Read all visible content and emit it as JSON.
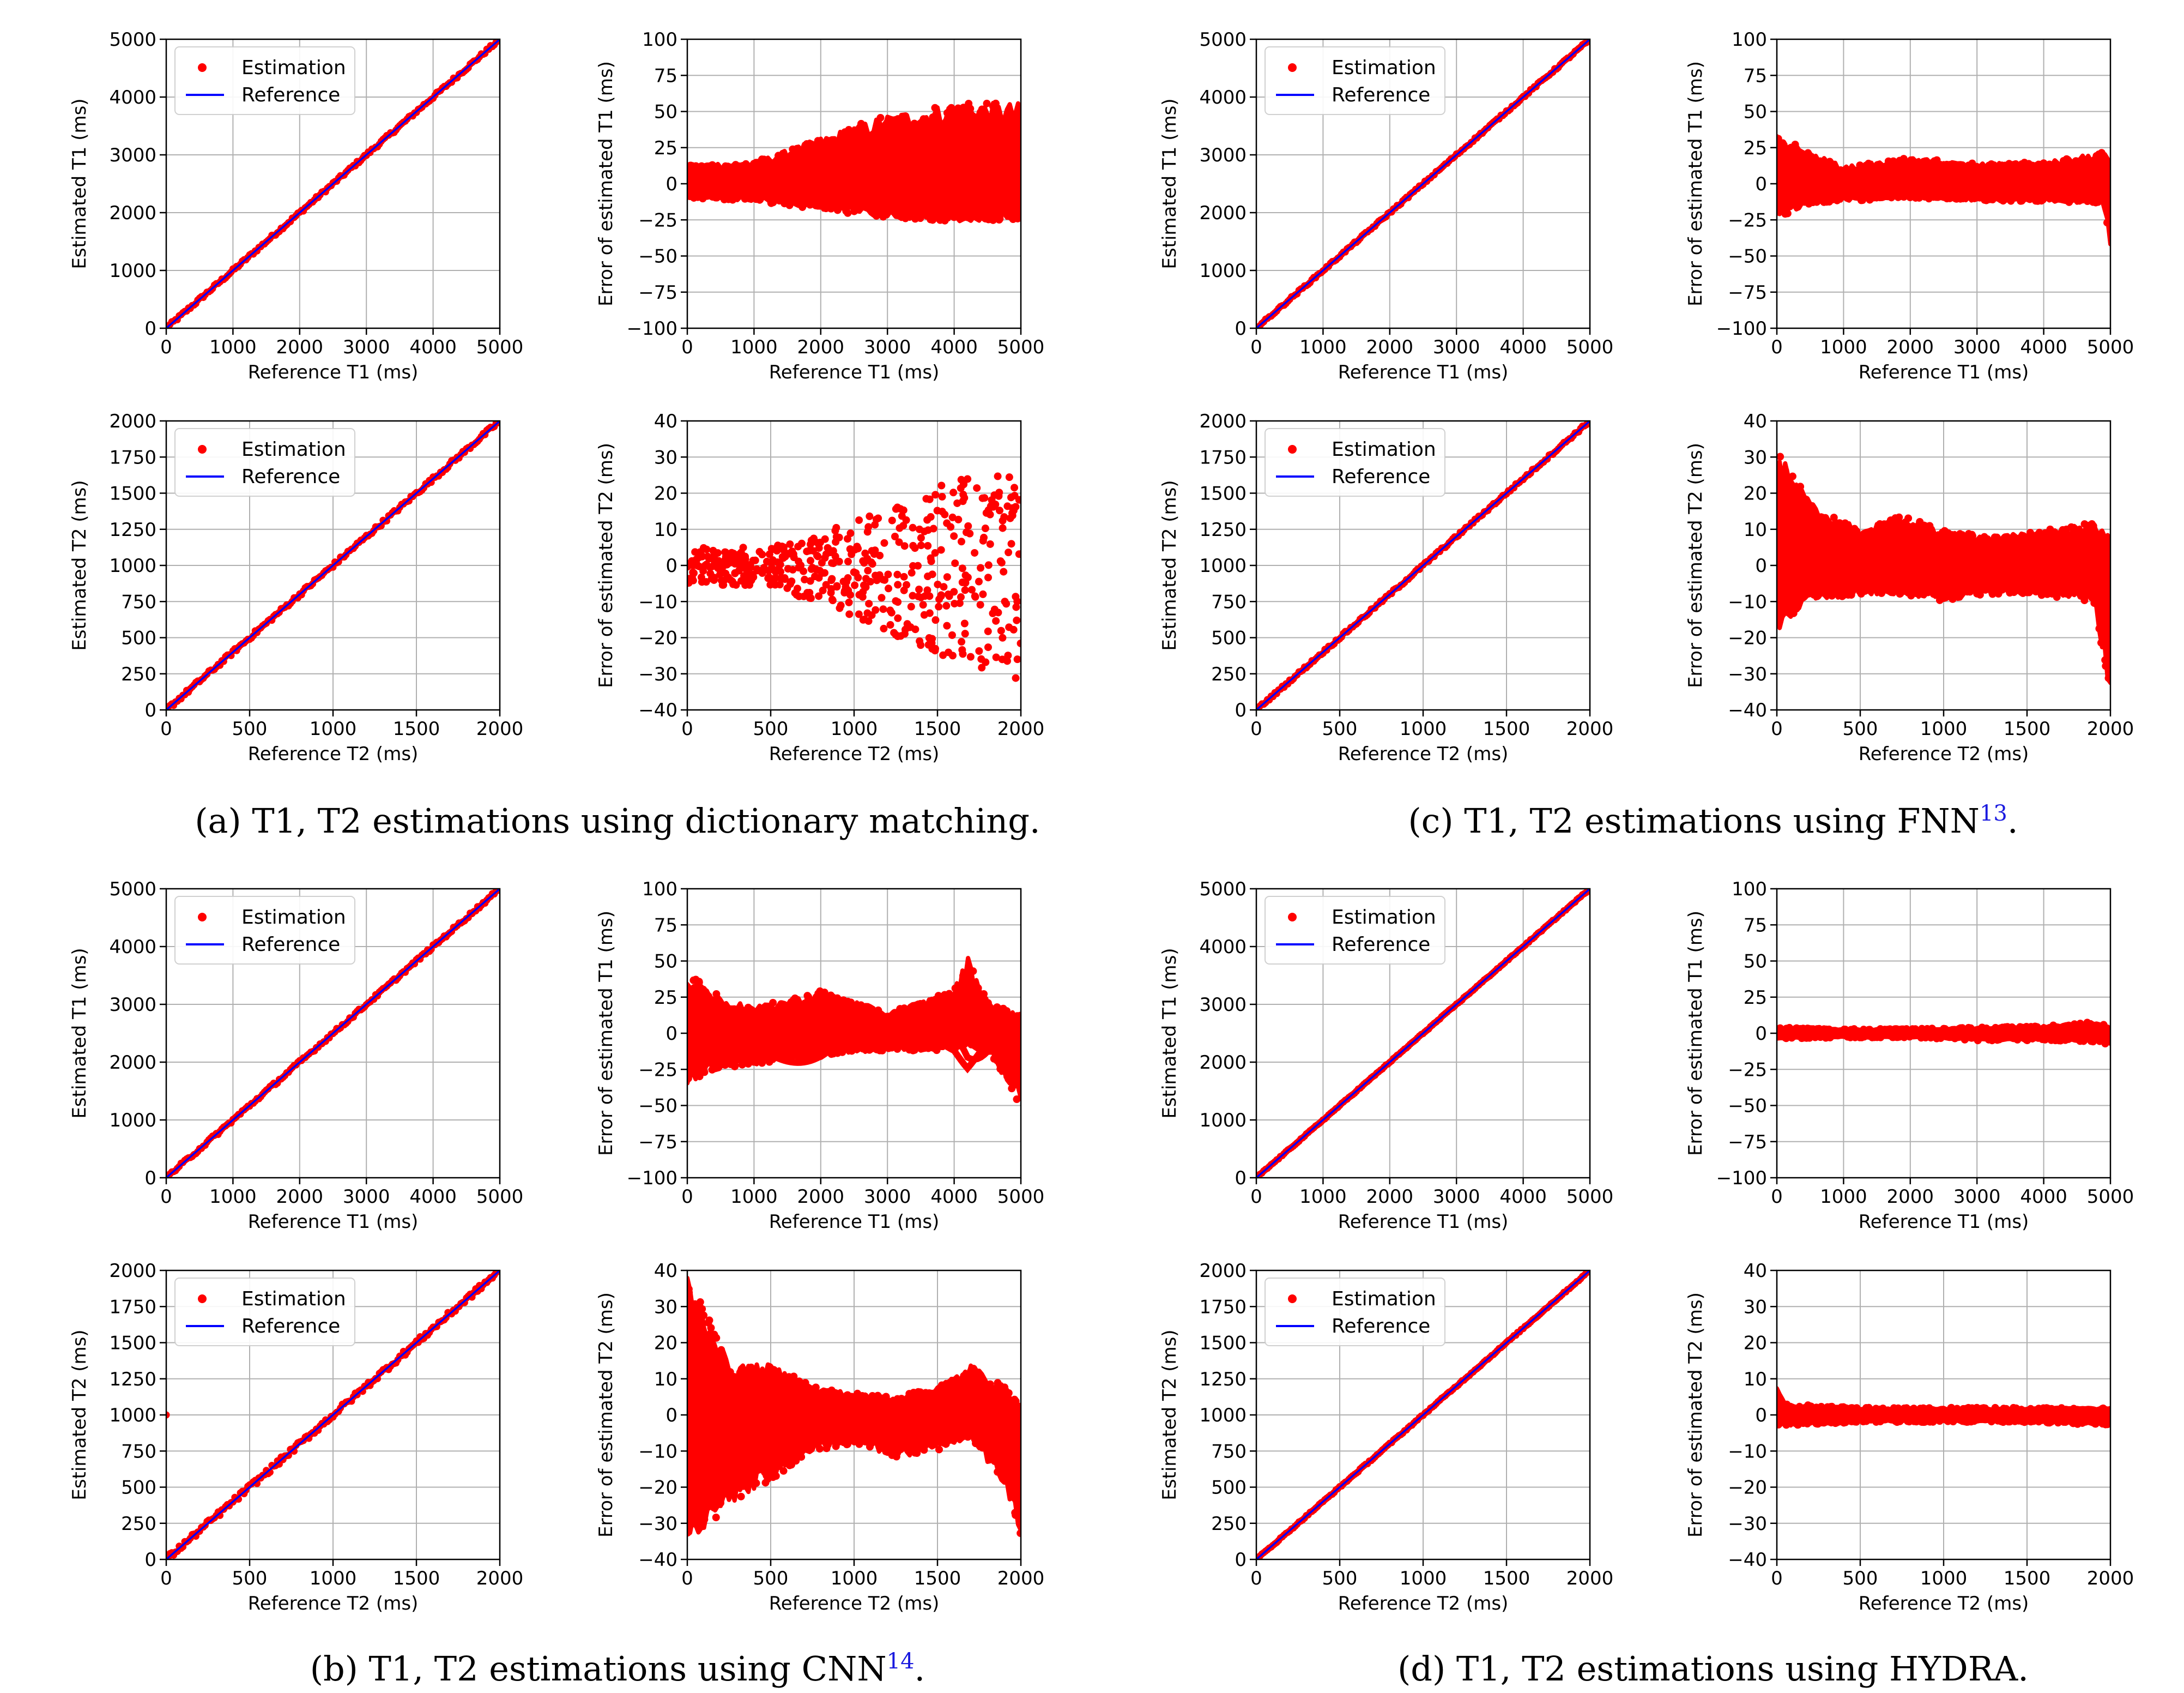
{
  "figure": {
    "captions": [
      {
        "id": "a",
        "text": "(a) T1, T2 estimations using dictionary matching.",
        "ref": "",
        "tail": ""
      },
      {
        "id": "b",
        "text": "(b) T1, T2 estimations using CNN",
        "ref": "14",
        "tail": "."
      },
      {
        "id": "c",
        "text": "(c) T1, T2 estimations using FNN",
        "ref": "13",
        "tail": "."
      },
      {
        "id": "d",
        "text": "(d) T1, T2 estimations using HYDRA.",
        "ref": "",
        "tail": ""
      }
    ]
  },
  "colors": {
    "estimation": "#ff0000",
    "reference": "#0000ff",
    "grid": "#b0b0b0",
    "axes": "#000000",
    "caption_ref": "#1a1adf"
  },
  "chart_data": [
    {
      "panel": "a",
      "kind": "scatter_ref",
      "param": "T1",
      "type": "scatter",
      "xlabel": "Reference T1 (ms)",
      "ylabel": "Estimated T1 (ms)",
      "xlim": [
        0,
        5000
      ],
      "ylim": [
        0,
        5000
      ],
      "xticks": [
        0,
        1000,
        2000,
        3000,
        4000,
        5000
      ],
      "yticks": [
        0,
        1000,
        2000,
        3000,
        4000,
        5000
      ],
      "legend": [
        "Estimation",
        "Reference"
      ],
      "legend_loc": "upper-left",
      "grid": true,
      "reference_line": [
        [
          0,
          0
        ],
        [
          5000,
          5000
        ]
      ],
      "marker_spread": 30
    },
    {
      "panel": "a",
      "kind": "error",
      "param": "T1",
      "type": "scatter",
      "xlabel": "Reference T1 (ms)",
      "ylabel": "Error of estimated T1 (ms)",
      "xlim": [
        0,
        5000
      ],
      "ylim": [
        -100,
        100
      ],
      "xticks": [
        0,
        1000,
        2000,
        3000,
        4000,
        5000
      ],
      "yticks": [
        -100,
        -75,
        -50,
        -25,
        0,
        25,
        50,
        75,
        100
      ],
      "grid": true,
      "style": "fan_grow",
      "error_envelope": {
        "x": [
          0,
          1000,
          2000,
          3000,
          4000,
          5000
        ],
        "upper": [
          14,
          15,
          32,
          48,
          56,
          56
        ],
        "lower": [
          -10,
          -12,
          -18,
          -24,
          -26,
          -25
        ]
      }
    },
    {
      "panel": "a",
      "kind": "scatter_ref",
      "param": "T2",
      "type": "scatter",
      "xlabel": "Reference T2 (ms)",
      "ylabel": "Estimated T2 (ms)",
      "xlim": [
        0,
        2000
      ],
      "ylim": [
        0,
        2000
      ],
      "xticks": [
        0,
        500,
        1000,
        1500,
        2000
      ],
      "yticks": [
        0,
        250,
        500,
        750,
        1000,
        1250,
        1500,
        1750,
        2000
      ],
      "legend": [
        "Estimation",
        "Reference"
      ],
      "legend_loc": "upper-left",
      "grid": true,
      "reference_line": [
        [
          0,
          0
        ],
        [
          2000,
          2000
        ]
      ],
      "marker_spread": 15
    },
    {
      "panel": "a",
      "kind": "error",
      "param": "T2",
      "type": "scatter",
      "xlabel": "Reference T2 (ms)",
      "ylabel": "Error of estimated T2 (ms)",
      "xlim": [
        0,
        2000
      ],
      "ylim": [
        -40,
        40
      ],
      "xticks": [
        0,
        500,
        1000,
        1500,
        2000
      ],
      "yticks": [
        -40,
        -30,
        -20,
        -10,
        0,
        10,
        20,
        30,
        40
      ],
      "grid": true,
      "style": "sparse_fan",
      "error_envelope": {
        "x": [
          0,
          500,
          1000,
          1500,
          2000
        ],
        "upper": [
          5,
          5,
          12,
          22,
          30
        ],
        "lower": [
          -5,
          -6,
          -14,
          -25,
          -32
        ]
      }
    },
    {
      "panel": "c",
      "kind": "scatter_ref",
      "param": "T1",
      "type": "scatter",
      "xlabel": "Reference T1 (ms)",
      "ylabel": "Estimated T1 (ms)",
      "xlim": [
        0,
        5000
      ],
      "ylim": [
        0,
        5000
      ],
      "xticks": [
        0,
        1000,
        2000,
        3000,
        4000,
        5000
      ],
      "yticks": [
        0,
        1000,
        2000,
        3000,
        4000,
        5000
      ],
      "legend": [
        "Estimation",
        "Reference"
      ],
      "legend_loc": "upper-left",
      "grid": true,
      "reference_line": [
        [
          0,
          0
        ],
        [
          5000,
          5000
        ]
      ],
      "marker_spread": 20
    },
    {
      "panel": "c",
      "kind": "error",
      "param": "T1",
      "type": "scatter",
      "xlabel": "Reference T1 (ms)",
      "ylabel": "Error of estimated T1 (ms)",
      "xlim": [
        0,
        5000
      ],
      "ylim": [
        -100,
        100
      ],
      "xticks": [
        0,
        1000,
        2000,
        3000,
        4000,
        5000
      ],
      "yticks": [
        -100,
        -75,
        -50,
        -25,
        0,
        25,
        50,
        75,
        100
      ],
      "grid": true,
      "style": "band",
      "error_envelope": {
        "x": [
          0,
          500,
          1000,
          2000,
          3000,
          4000,
          4900,
          5000
        ],
        "upper": [
          34,
          22,
          12,
          18,
          14,
          15,
          22,
          14
        ],
        "lower": [
          -24,
          -14,
          -12,
          -10,
          -12,
          -12,
          -14,
          -42
        ]
      }
    },
    {
      "panel": "c",
      "kind": "scatter_ref",
      "param": "T2",
      "type": "scatter",
      "xlabel": "Reference T2 (ms)",
      "ylabel": "Estimated T2 (ms)",
      "xlim": [
        0,
        2000
      ],
      "ylim": [
        0,
        2000
      ],
      "xticks": [
        0,
        500,
        1000,
        1500,
        2000
      ],
      "yticks": [
        0,
        250,
        500,
        750,
        1000,
        1250,
        1500,
        1750,
        2000
      ],
      "legend": [
        "Estimation",
        "Reference"
      ],
      "legend_loc": "upper-left",
      "grid": true,
      "reference_line": [
        [
          0,
          0
        ],
        [
          2000,
          2000
        ]
      ],
      "marker_spread": 10
    },
    {
      "panel": "c",
      "kind": "error",
      "param": "T2",
      "type": "scatter",
      "xlabel": "Reference T2 (ms)",
      "ylabel": "Error of estimated T2 (ms)",
      "xlim": [
        0,
        2000
      ],
      "ylim": [
        -40,
        40
      ],
      "xticks": [
        0,
        500,
        1000,
        1500,
        2000
      ],
      "yticks": [
        -40,
        -30,
        -20,
        -10,
        0,
        10,
        20,
        30,
        40
      ],
      "grid": true,
      "style": "band",
      "error_envelope": {
        "x": [
          0,
          200,
          500,
          750,
          1000,
          1250,
          1500,
          1900,
          2000
        ],
        "upper": [
          32,
          18,
          10,
          14,
          10,
          8,
          9,
          12,
          8
        ],
        "lower": [
          -18,
          -10,
          -8,
          -8,
          -10,
          -8,
          -8,
          -10,
          -36
        ]
      }
    },
    {
      "panel": "b",
      "kind": "scatter_ref",
      "param": "T1",
      "type": "scatter",
      "xlabel": "Reference T1 (ms)",
      "ylabel": "Estimated T1 (ms)",
      "xlim": [
        0,
        5000
      ],
      "ylim": [
        0,
        5000
      ],
      "xticks": [
        0,
        1000,
        2000,
        3000,
        4000,
        5000
      ],
      "yticks": [
        0,
        1000,
        2000,
        3000,
        4000,
        5000
      ],
      "legend": [
        "Estimation",
        "Reference"
      ],
      "legend_loc": "upper-left",
      "grid": true,
      "reference_line": [
        [
          0,
          0
        ],
        [
          5000,
          5000
        ]
      ],
      "marker_spread": 30
    },
    {
      "panel": "b",
      "kind": "error",
      "param": "T1",
      "type": "scatter",
      "xlabel": "Reference T1 (ms)",
      "ylabel": "Error of estimated T1 (ms)",
      "xlim": [
        0,
        5000
      ],
      "ylim": [
        -100,
        100
      ],
      "xticks": [
        0,
        1000,
        2000,
        3000,
        4000,
        5000
      ],
      "yticks": [
        -100,
        -75,
        -50,
        -25,
        0,
        25,
        50,
        75,
        100
      ],
      "grid": true,
      "style": "waves",
      "error_envelope": {
        "x": [
          0,
          500,
          1000,
          2000,
          3000,
          4000,
          4200,
          4500,
          5000
        ],
        "upper": [
          42,
          25,
          18,
          30,
          15,
          30,
          54,
          22,
          12
        ],
        "lower": [
          -35,
          -25,
          -22,
          -15,
          -12,
          -12,
          -8,
          -10,
          -52
        ]
      }
    },
    {
      "panel": "b",
      "kind": "scatter_ref",
      "param": "T2",
      "type": "scatter",
      "xlabel": "Reference T2 (ms)",
      "ylabel": "Estimated T2 (ms)",
      "xlim": [
        0,
        2000
      ],
      "ylim": [
        0,
        2000
      ],
      "xticks": [
        0,
        500,
        1000,
        1500,
        2000
      ],
      "yticks": [
        0,
        250,
        500,
        750,
        1000,
        1250,
        1500,
        1750,
        2000
      ],
      "legend": [
        "Estimation",
        "Reference"
      ],
      "legend_loc": "upper-left",
      "grid": true,
      "reference_line": [
        [
          0,
          0
        ],
        [
          2000,
          2000
        ]
      ],
      "marker_spread": 20,
      "outliers": [
        [
          0,
          1000
        ]
      ]
    },
    {
      "panel": "b",
      "kind": "error",
      "param": "T2",
      "type": "scatter",
      "xlabel": "Reference T2 (ms)",
      "ylabel": "Error of estimated T2 (ms)",
      "xlim": [
        0,
        2000
      ],
      "ylim": [
        -40,
        40
      ],
      "xticks": [
        0,
        500,
        1000,
        1500,
        2000
      ],
      "yticks": [
        -40,
        -30,
        -20,
        -10,
        0,
        10,
        20,
        30,
        40
      ],
      "grid": true,
      "style": "band",
      "error_envelope": {
        "x": [
          0,
          100,
          250,
          500,
          750,
          1000,
          1250,
          1500,
          1700,
          1900,
          2000
        ],
        "upper": [
          40,
          30,
          14,
          14,
          8,
          6,
          5,
          8,
          14,
          8,
          2
        ],
        "lower": [
          -35,
          -32,
          -25,
          -18,
          -10,
          -8,
          -12,
          -10,
          -6,
          -20,
          -34
        ]
      }
    },
    {
      "panel": "d",
      "kind": "scatter_ref",
      "param": "T1",
      "type": "scatter",
      "xlabel": "Reference T1 (ms)",
      "ylabel": "Estimated T1 (ms)",
      "xlim": [
        0,
        5000
      ],
      "ylim": [
        0,
        5000
      ],
      "xticks": [
        0,
        1000,
        2000,
        3000,
        4000,
        5000
      ],
      "yticks": [
        0,
        1000,
        2000,
        3000,
        4000,
        5000
      ],
      "legend": [
        "Estimation",
        "Reference"
      ],
      "legend_loc": "upper-left",
      "grid": true,
      "reference_line": [
        [
          0,
          0
        ],
        [
          5000,
          5000
        ]
      ],
      "marker_spread": 10
    },
    {
      "panel": "d",
      "kind": "error",
      "param": "T1",
      "type": "scatter",
      "xlabel": "Reference T1 (ms)",
      "ylabel": "Error of estimated T1 (ms)",
      "xlim": [
        0,
        5000
      ],
      "ylim": [
        -100,
        100
      ],
      "xticks": [
        0,
        1000,
        2000,
        3000,
        4000,
        5000
      ],
      "yticks": [
        -100,
        -75,
        -50,
        -25,
        0,
        25,
        50,
        75,
        100
      ],
      "grid": true,
      "style": "band",
      "error_envelope": {
        "x": [
          0,
          1000,
          2000,
          3000,
          4000,
          4800,
          5000
        ],
        "upper": [
          4,
          3,
          3,
          4,
          5,
          8,
          4
        ],
        "lower": [
          -4,
          -3,
          -3,
          -5,
          -5,
          -6,
          -8
        ]
      }
    },
    {
      "panel": "d",
      "kind": "scatter_ref",
      "param": "T2",
      "type": "scatter",
      "xlabel": "Reference T2 (ms)",
      "ylabel": "Estimated T2 (ms)",
      "xlim": [
        0,
        2000
      ],
      "ylim": [
        0,
        2000
      ],
      "xticks": [
        0,
        500,
        1000,
        1500,
        2000
      ],
      "yticks": [
        0,
        250,
        500,
        750,
        1000,
        1250,
        1500,
        1750,
        2000
      ],
      "legend": [
        "Estimation",
        "Reference"
      ],
      "legend_loc": "upper-left",
      "grid": true,
      "reference_line": [
        [
          0,
          0
        ],
        [
          2000,
          2000
        ]
      ],
      "marker_spread": 5
    },
    {
      "panel": "d",
      "kind": "error",
      "param": "T2",
      "type": "scatter",
      "xlabel": "Reference T2 (ms)",
      "ylabel": "Error of estimated T2 (ms)",
      "xlim": [
        0,
        2000
      ],
      "ylim": [
        -40,
        40
      ],
      "xticks": [
        0,
        500,
        1000,
        1500,
        2000
      ],
      "yticks": [
        -40,
        -30,
        -20,
        -10,
        0,
        10,
        20,
        30,
        40
      ],
      "grid": true,
      "style": "band",
      "error_envelope": {
        "x": [
          0,
          50,
          500,
          1000,
          1500,
          2000
        ],
        "upper": [
          9,
          3,
          2,
          2,
          2,
          2
        ],
        "lower": [
          -3,
          -3,
          -2,
          -2,
          -2,
          -3
        ]
      }
    }
  ]
}
